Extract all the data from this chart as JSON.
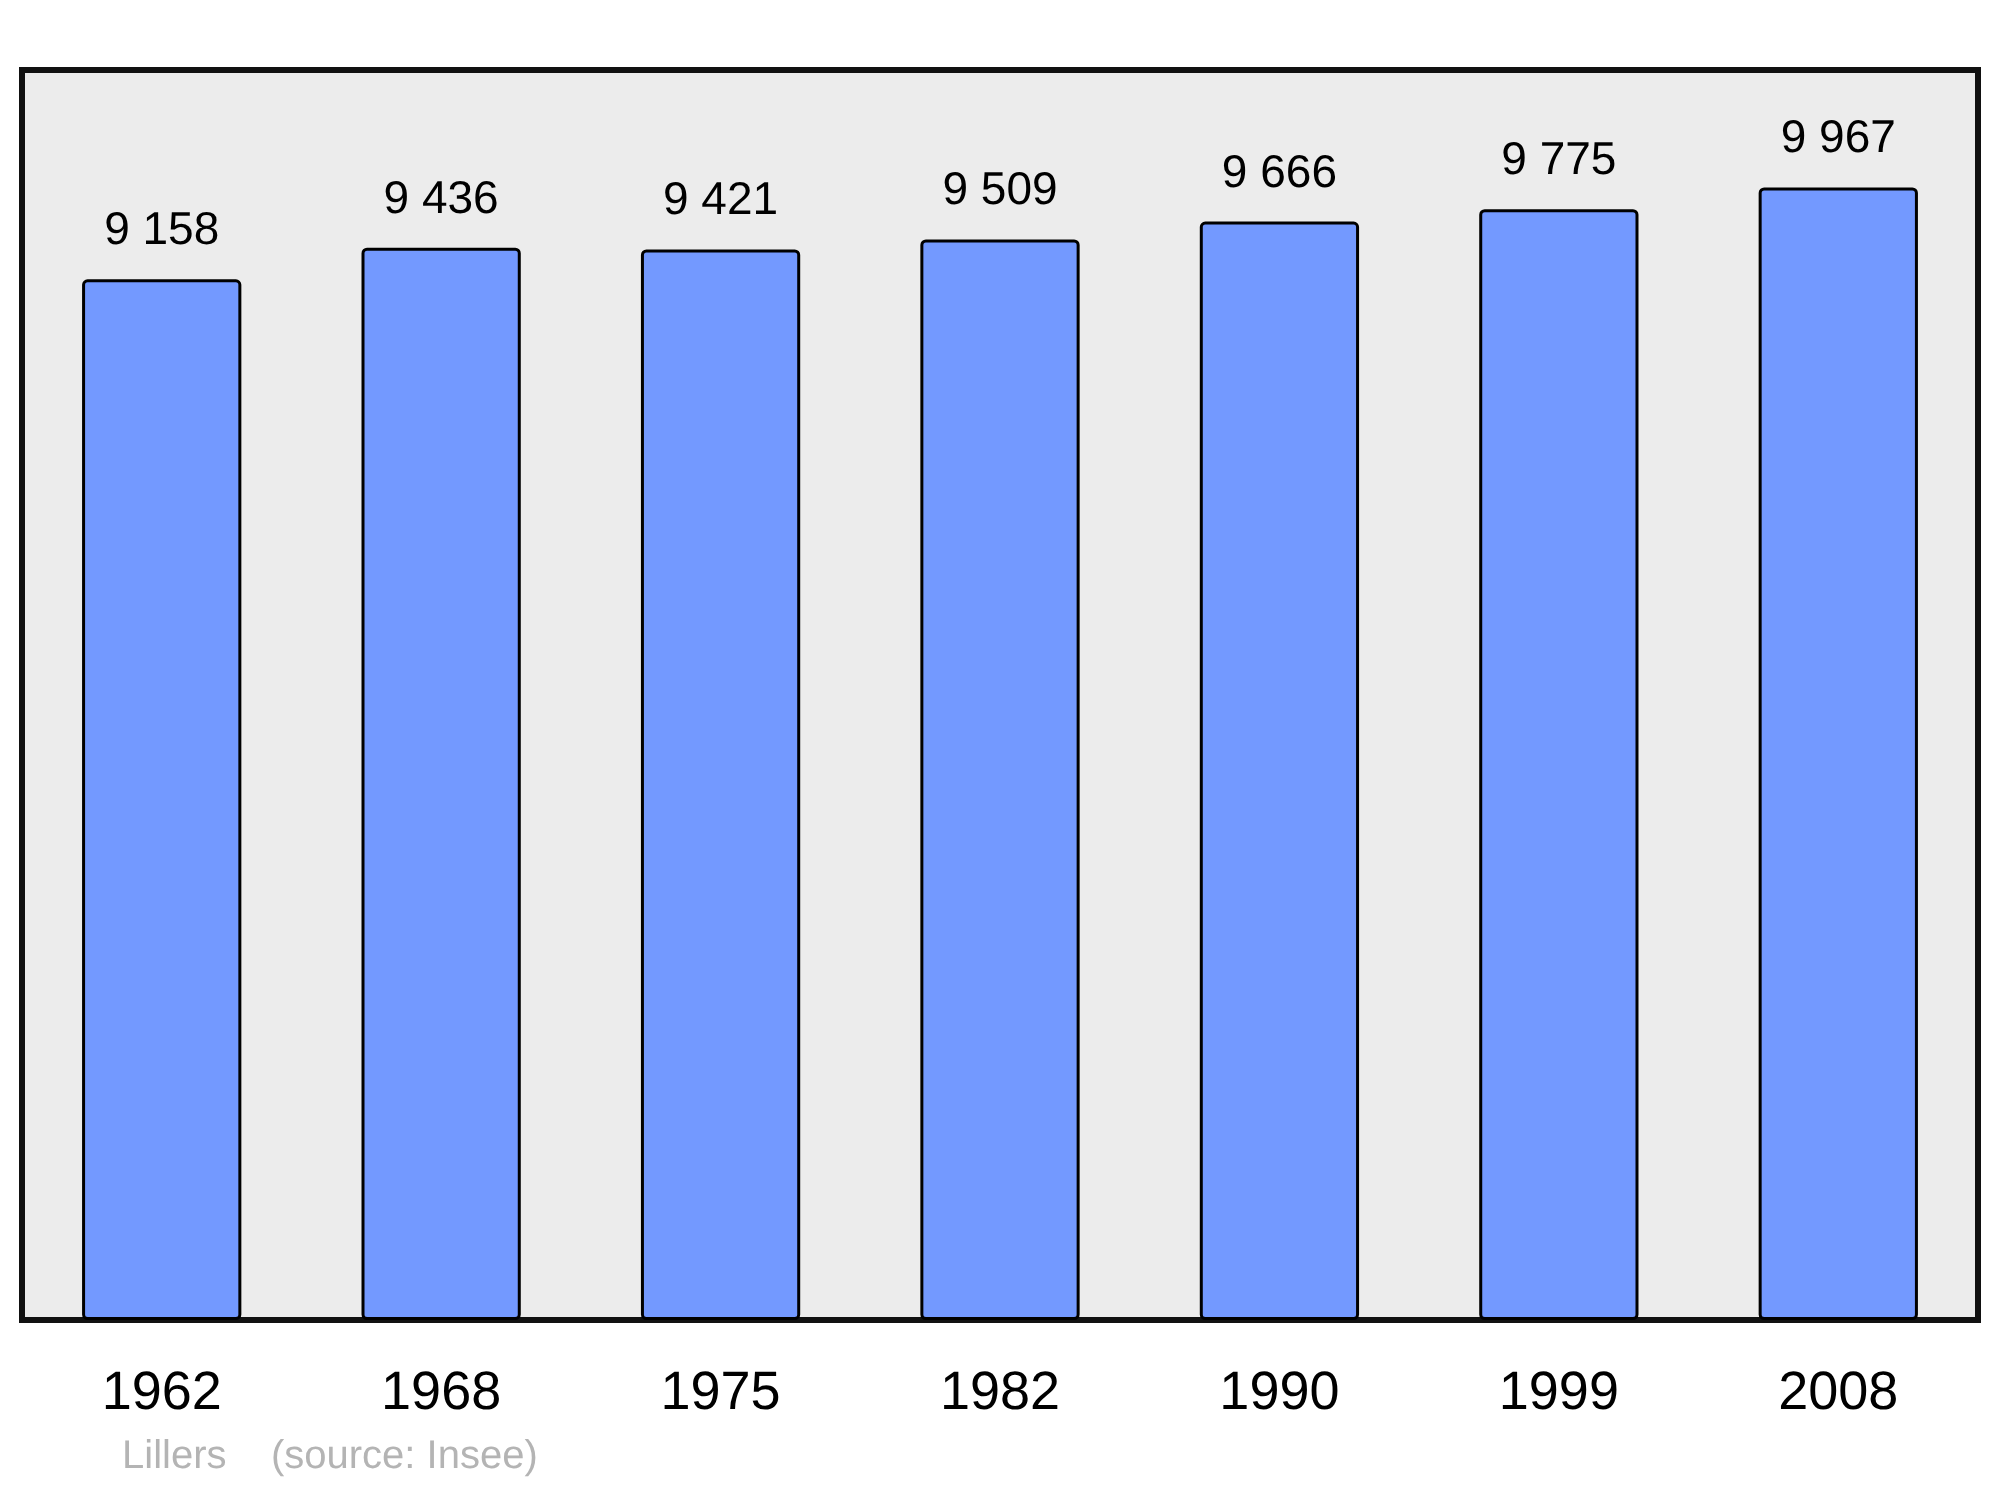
{
  "chart_data": {
    "type": "bar",
    "categories": [
      "1962",
      "1968",
      "1975",
      "1982",
      "1990",
      "1999",
      "2008"
    ],
    "values": [
      9158,
      9436,
      9421,
      9509,
      9666,
      9775,
      9967
    ],
    "value_labels": [
      "9 158",
      "9 436",
      "9 421",
      "9 509",
      "9 666",
      "9 775",
      "9 967"
    ],
    "color": "#7399ff",
    "ylim": [
      0,
      11000
    ],
    "tick_labels": "x",
    "annotations": [
      "Lillers    (source: Insee)"
    ]
  }
}
